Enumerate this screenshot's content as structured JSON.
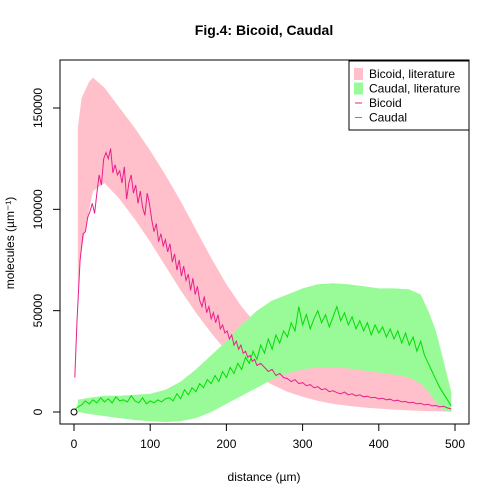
{
  "chart_data": {
    "type": "line",
    "title": "Fig.4: Bicoid, Caudal",
    "xlabel": "distance (µm)",
    "ylabel": "molecules (µm⁻¹)",
    "xlim": [
      0,
      500
    ],
    "ylim": [
      0,
      160000
    ],
    "xticks": [
      0,
      100,
      200,
      300,
      400,
      500
    ],
    "yticks": [
      0,
      50000,
      100000,
      150000
    ],
    "grid": false,
    "legend_position": "top-right",
    "legend": [
      {
        "label": "Bicoid, literature",
        "kind": "band",
        "color": "#ffc0cb"
      },
      {
        "label": "Caudal, literature",
        "kind": "band",
        "color": "#98fb98"
      },
      {
        "label": "Bicoid",
        "kind": "line",
        "color": "#e8208c"
      },
      {
        "label": "Caudal",
        "kind": "line",
        "color": "#00dd00"
      }
    ],
    "bands": [
      {
        "name": "Bicoid, literature",
        "color": "#ffc0cb",
        "x": [
          5,
          10,
          20,
          25,
          40,
          60,
          80,
          100,
          120,
          140,
          160,
          180,
          200,
          220,
          240,
          260,
          280,
          300,
          320,
          340,
          360,
          380,
          400,
          420,
          440,
          460,
          480,
          495
        ],
        "upper": [
          140000,
          155000,
          163000,
          165000,
          160000,
          150000,
          140000,
          129000,
          117000,
          104000,
          90000,
          76000,
          63000,
          52000,
          43000,
          36000,
          31000,
          27000,
          24500,
          23000,
          22000,
          21000,
          20000,
          19000,
          18000,
          16000,
          13000,
          9000
        ],
        "lower": [
          60000,
          80000,
          100000,
          109000,
          113000,
          105000,
          95000,
          84000,
          72000,
          60000,
          49000,
          39000,
          30000,
          23000,
          17500,
          13500,
          10000,
          7500,
          5500,
          4000,
          3000,
          2200,
          1700,
          1200,
          800,
          500,
          300,
          200
        ]
      },
      {
        "name": "Caudal, literature",
        "color": "#98fb98",
        "x": [
          5,
          20,
          40,
          60,
          80,
          100,
          120,
          140,
          160,
          180,
          200,
          220,
          240,
          260,
          280,
          300,
          320,
          340,
          360,
          380,
          400,
          420,
          440,
          455,
          465,
          475,
          485,
          495
        ],
        "upper": [
          6000,
          7000,
          8000,
          8000,
          8500,
          9000,
          11000,
          15000,
          21000,
          28000,
          35000,
          43000,
          50000,
          55000,
          58000,
          61000,
          63000,
          63500,
          63000,
          62000,
          61000,
          61000,
          60500,
          58000,
          50000,
          40000,
          25000,
          10000
        ],
        "lower": [
          0,
          -1000,
          -2000,
          -3000,
          -4000,
          -4500,
          -5000,
          -4500,
          -3000,
          0,
          4000,
          8000,
          12000,
          16000,
          19000,
          21000,
          22000,
          22000,
          21500,
          20500,
          19500,
          18500,
          17000,
          14000,
          10000,
          5000,
          1000,
          0
        ]
      }
    ],
    "series": [
      {
        "name": "Bicoid",
        "color": "#e8208c",
        "x": [
          1,
          4,
          8,
          12,
          15,
          18,
          21,
          24,
          27,
          30,
          33,
          36,
          39,
          42,
          45,
          48,
          51,
          54,
          57,
          60,
          63,
          66,
          69,
          72,
          75,
          78,
          81,
          84,
          87,
          90,
          93,
          96,
          99,
          102,
          105,
          108,
          111,
          114,
          117,
          120,
          123,
          126,
          129,
          132,
          135,
          138,
          141,
          144,
          147,
          150,
          153,
          156,
          159,
          162,
          165,
          168,
          171,
          174,
          177,
          180,
          183,
          186,
          189,
          192,
          195,
          198,
          201,
          204,
          207,
          210,
          213,
          216,
          219,
          222,
          225,
          228,
          231,
          234,
          237,
          240,
          245,
          250,
          255,
          260,
          265,
          270,
          275,
          280,
          285,
          290,
          295,
          300,
          305,
          310,
          315,
          320,
          325,
          330,
          335,
          340,
          345,
          350,
          355,
          360,
          365,
          370,
          375,
          380,
          385,
          390,
          395,
          400,
          405,
          410,
          415,
          420,
          425,
          430,
          435,
          440,
          445,
          450,
          455,
          460,
          465,
          470,
          475,
          480,
          485,
          490,
          495
        ],
        "y": [
          17000,
          45000,
          75000,
          88000,
          89000,
          96000,
          99000,
          103000,
          98000,
          108000,
          117000,
          112000,
          125000,
          128000,
          125000,
          130000,
          118000,
          122000,
          117000,
          119000,
          113000,
          121000,
          105000,
          113000,
          117000,
          108000,
          112000,
          103000,
          109000,
          101000,
          97000,
          108000,
          103000,
          95000,
          89000,
          93000,
          84000,
          88000,
          82000,
          85000,
          79000,
          83000,
          74000,
          78000,
          70000,
          75000,
          67000,
          72000,
          65000,
          68000,
          60000,
          66000,
          58000,
          62000,
          55000,
          52000,
          57000,
          49000,
          52000,
          46000,
          49000,
          44000,
          48000,
          41000,
          43000,
          39000,
          40000,
          36000,
          38000,
          33000,
          35000,
          31000,
          33000,
          29000,
          30000,
          27000,
          28000,
          25000,
          26000,
          23000,
          24000,
          22000,
          20000,
          21000,
          18000,
          19000,
          17000,
          16500,
          15000,
          16000,
          14000,
          14500,
          13000,
          13500,
          12000,
          12500,
          11000,
          11500,
          10000,
          10500,
          9500,
          9000,
          9800,
          8500,
          9000,
          8000,
          8500,
          7500,
          7800,
          7000,
          7200,
          6500,
          6800,
          6000,
          6300,
          5500,
          5800,
          5000,
          5200,
          4500,
          4800,
          4000,
          4300,
          3500,
          3800,
          3000,
          3200,
          2500,
          2800,
          2000,
          1500
        ]
      },
      {
        "name": "Caudal",
        "color": "#00dd00",
        "x": [
          1,
          5,
          10,
          15,
          20,
          25,
          30,
          35,
          40,
          45,
          50,
          55,
          60,
          65,
          70,
          75,
          80,
          85,
          90,
          95,
          100,
          105,
          110,
          115,
          120,
          125,
          130,
          135,
          140,
          145,
          150,
          155,
          160,
          165,
          170,
          175,
          180,
          185,
          190,
          195,
          200,
          205,
          210,
          215,
          220,
          225,
          230,
          235,
          240,
          245,
          250,
          255,
          260,
          265,
          270,
          275,
          280,
          285,
          290,
          295,
          300,
          305,
          310,
          315,
          320,
          325,
          330,
          335,
          340,
          345,
          350,
          355,
          360,
          365,
          370,
          375,
          380,
          385,
          390,
          395,
          400,
          405,
          410,
          415,
          420,
          425,
          430,
          435,
          440,
          445,
          450,
          455,
          460,
          465,
          470,
          475,
          480,
          485,
          490,
          495
        ],
        "y": [
          1000,
          2500,
          3500,
          5500,
          4000,
          6000,
          4500,
          7000,
          5000,
          6500,
          4500,
          7500,
          5500,
          6000,
          5000,
          8000,
          5500,
          4500,
          7000,
          4000,
          5500,
          4500,
          6000,
          5000,
          6500,
          7000,
          5500,
          9000,
          6500,
          11000,
          8500,
          12000,
          10000,
          14000,
          12000,
          16000,
          14000,
          18000,
          15000,
          20000,
          17000,
          22000,
          19000,
          24000,
          21000,
          27000,
          24000,
          30000,
          26000,
          33000,
          29000,
          36000,
          31000,
          38000,
          34000,
          40000,
          37000,
          44000,
          40000,
          52000,
          43000,
          48000,
          41000,
          46000,
          50000,
          44000,
          48000,
          42000,
          47000,
          52000,
          45000,
          49000,
          43000,
          47000,
          41000,
          45000,
          40000,
          44000,
          38000,
          43000,
          39000,
          42000,
          37000,
          41000,
          36000,
          40000,
          34000,
          39000,
          33000,
          37000,
          30000,
          35000,
          28000,
          24000,
          20000,
          16000,
          12000,
          9000,
          6000,
          3000
        ]
      }
    ],
    "annotations": [
      {
        "type": "open-circle",
        "x": 0,
        "y": 0
      }
    ]
  }
}
